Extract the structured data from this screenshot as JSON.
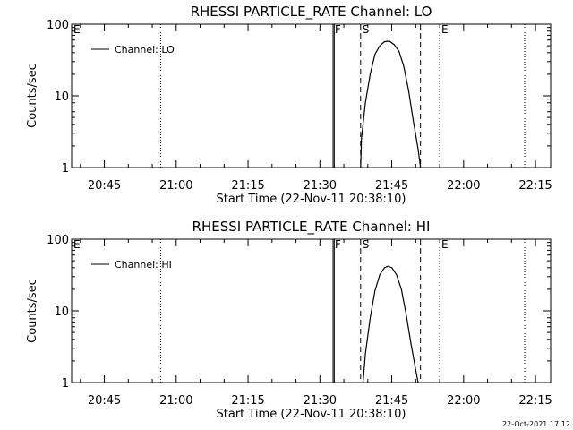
{
  "timestamp": "22-Oct-2021 17:12",
  "chart_data": [
    {
      "type": "line",
      "title": "RHESSI PARTICLE_RATE Channel: LO",
      "xlabel": "Start Time (22-Nov-11 20:38:10)",
      "ylabel": "Counts/sec",
      "x_scale": "time",
      "y_scale": "log",
      "xlim": [
        "20:38:10",
        "22:18:10"
      ],
      "ylim": [
        1,
        100
      ],
      "x_ticks": [
        "20:45",
        "21:00",
        "21:15",
        "21:30",
        "21:45",
        "22:00",
        "22:15"
      ],
      "y_ticks": [
        "1",
        "10",
        "100"
      ],
      "legend": {
        "position": "top-left",
        "label": "Channel: LO"
      },
      "series": [
        {
          "name": "Channel: LO",
          "points": [
            [
              "21:38:30",
              1.0
            ],
            [
              "21:38:40",
              2.5
            ],
            [
              "21:39:30",
              8
            ],
            [
              "21:40:30",
              20
            ],
            [
              "21:41:30",
              38
            ],
            [
              "21:42:30",
              50
            ],
            [
              "21:43:30",
              57
            ],
            [
              "21:44:30",
              58
            ],
            [
              "21:45:30",
              52
            ],
            [
              "21:46:30",
              42
            ],
            [
              "21:47:30",
              26
            ],
            [
              "21:48:30",
              12
            ],
            [
              "21:49:30",
              4.5
            ],
            [
              "21:50:30",
              1.8
            ],
            [
              "21:51:00",
              1.0
            ]
          ]
        }
      ],
      "vlines": [
        {
          "x": "20:56:45",
          "style": "dotted",
          "label": ""
        },
        {
          "x": "21:32:45",
          "style": "solid",
          "label": "F"
        },
        {
          "x": "21:33:00",
          "style": "solid",
          "label": ""
        },
        {
          "x": "21:38:30",
          "style": "dashed",
          "label": "S"
        },
        {
          "x": "21:51:00",
          "style": "dashed",
          "label": ""
        },
        {
          "x": "21:55:00",
          "style": "dotted",
          "label": "E"
        },
        {
          "x": "22:12:45",
          "style": "dotted",
          "label": ""
        }
      ],
      "corner_mark": "E"
    },
    {
      "type": "line",
      "title": "RHESSI PARTICLE_RATE Channel: HI",
      "xlabel": "Start Time (22-Nov-11 20:38:10)",
      "ylabel": "Counts/sec",
      "x_scale": "time",
      "y_scale": "log",
      "xlim": [
        "20:38:10",
        "22:18:10"
      ],
      "ylim": [
        1,
        100
      ],
      "x_ticks": [
        "20:45",
        "21:00",
        "21:15",
        "21:30",
        "21:45",
        "22:00",
        "22:15"
      ],
      "y_ticks": [
        "1",
        "10",
        "100"
      ],
      "legend": {
        "position": "top-left",
        "label": "Channel: HI"
      },
      "series": [
        {
          "name": "Channel: HI",
          "points": [
            [
              "21:39:00",
              1.0
            ],
            [
              "21:39:30",
              2.5
            ],
            [
              "21:40:30",
              8
            ],
            [
              "21:41:30",
              19
            ],
            [
              "21:42:30",
              32
            ],
            [
              "21:43:30",
              40
            ],
            [
              "21:44:15",
              42
            ],
            [
              "21:45:00",
              40
            ],
            [
              "21:46:00",
              32
            ],
            [
              "21:47:00",
              20
            ],
            [
              "21:48:00",
              9
            ],
            [
              "21:49:00",
              3.5
            ],
            [
              "21:50:00",
              1.5
            ],
            [
              "21:50:30",
              1.0
            ]
          ]
        }
      ],
      "vlines": [
        {
          "x": "20:56:45",
          "style": "dotted",
          "label": ""
        },
        {
          "x": "21:32:45",
          "style": "solid",
          "label": "F"
        },
        {
          "x": "21:33:00",
          "style": "solid",
          "label": ""
        },
        {
          "x": "21:38:30",
          "style": "dashed",
          "label": "S"
        },
        {
          "x": "21:51:00",
          "style": "dashed",
          "label": ""
        },
        {
          "x": "21:55:00",
          "style": "dotted",
          "label": "E"
        },
        {
          "x": "22:12:45",
          "style": "dotted",
          "label": ""
        }
      ],
      "corner_mark": "E"
    }
  ]
}
